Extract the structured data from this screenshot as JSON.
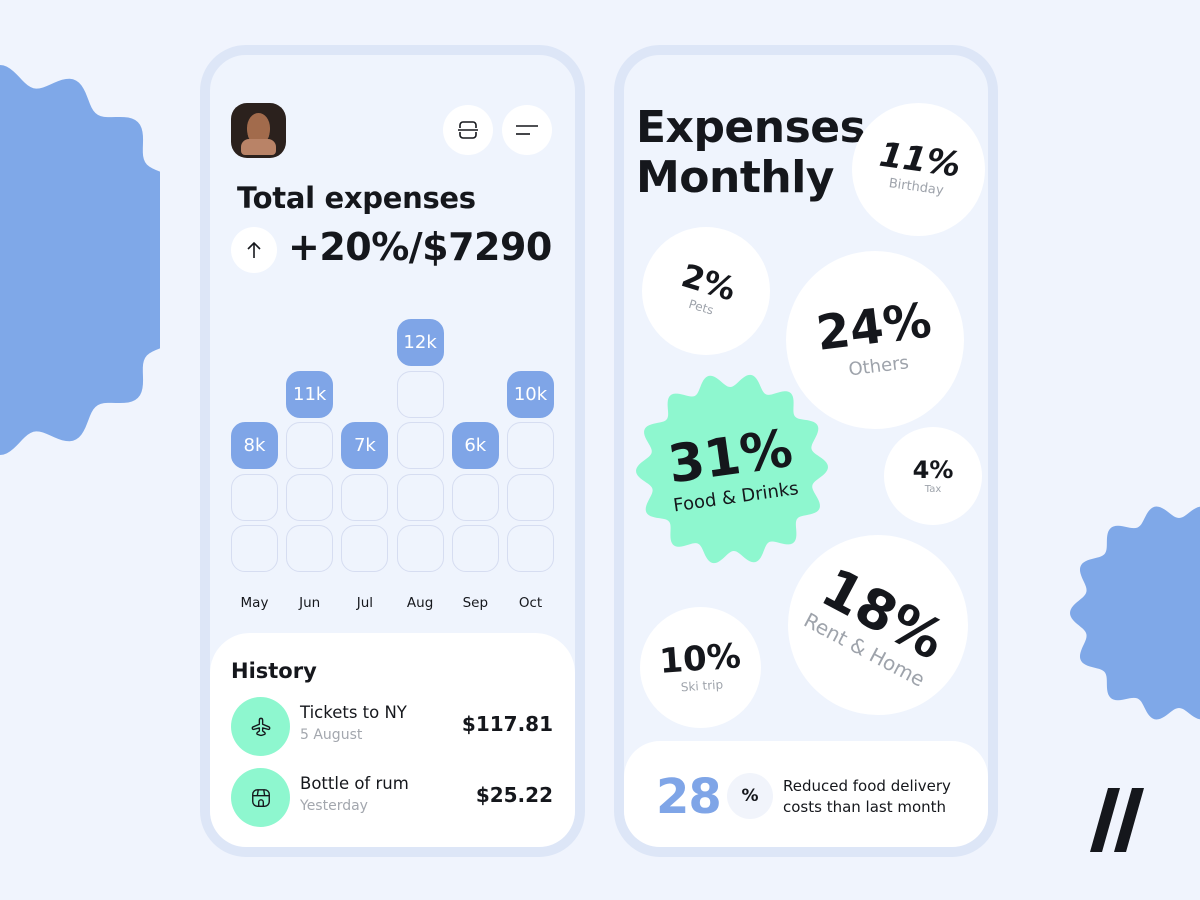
{
  "colors": {
    "background": "#f0f4fd",
    "frame": "#dde6f7",
    "screen": "#eff4fd",
    "accent_blue": "#7fa5e7",
    "accent_mint": "#8ef7cf",
    "text": "#15171c",
    "muted": "#9ea3ab"
  },
  "left_screen": {
    "header": {
      "avatar_icon": "user-avatar",
      "scan_button_icon": "scan-icon",
      "menu_button_icon": "menu-icon"
    },
    "total": {
      "title": "Total expenses",
      "trend_icon": "arrow-up-icon",
      "value": "+20%/$7290"
    },
    "chart": {
      "bars": [
        {
          "month": "May",
          "label": "8k",
          "level": 3
        },
        {
          "month": "Jun",
          "label": "11k",
          "level": 4
        },
        {
          "month": "Jul",
          "label": "7k",
          "level": 3
        },
        {
          "month": "Aug",
          "label": "12k",
          "level": 5
        },
        {
          "month": "Sep",
          "label": "6k",
          "level": 3
        },
        {
          "month": "Oct",
          "label": "10k",
          "level": 4
        }
      ]
    },
    "history": {
      "title": "History",
      "items": [
        {
          "icon": "airplane-icon",
          "name": "Tickets to NY",
          "date": "5 August",
          "amount": "$117.81"
        },
        {
          "icon": "store-icon",
          "name": "Bottle of rum",
          "date": "Yesterday",
          "amount": "$25.22"
        }
      ]
    }
  },
  "right_screen": {
    "title_line1": "Expenses",
    "title_line2": "Monthly",
    "categories": [
      {
        "key": "birthday",
        "percent": "11%",
        "label": "Birthday"
      },
      {
        "key": "pets",
        "percent": "2%",
        "label": "Pets"
      },
      {
        "key": "others",
        "percent": "24%",
        "label": "Others"
      },
      {
        "key": "food",
        "percent": "31%",
        "label": "Food & Drinks"
      },
      {
        "key": "tax",
        "percent": "4%",
        "label": "Tax"
      },
      {
        "key": "rent",
        "percent": "18%",
        "label": "Rent & Home"
      },
      {
        "key": "ski",
        "percent": "10%",
        "label": "Ski trip"
      }
    ],
    "summary": {
      "number": "28",
      "unit": "%",
      "text": "Reduced food delivery costs than last month"
    }
  },
  "chart_data": [
    {
      "type": "bar",
      "title": "Total expenses",
      "categories": [
        "May",
        "Jun",
        "Jul",
        "Aug",
        "Sep",
        "Oct"
      ],
      "values": [
        8000,
        11000,
        7000,
        12000,
        6000,
        10000
      ],
      "value_labels": [
        "8k",
        "11k",
        "7k",
        "12k",
        "6k",
        "10k"
      ],
      "xlabel": "",
      "ylabel": "",
      "grid": true
    },
    {
      "type": "pie",
      "title": "Expenses Monthly",
      "categories": [
        "Birthday",
        "Pets",
        "Others",
        "Food & Drinks",
        "Tax",
        "Rent & Home",
        "Ski trip"
      ],
      "values": [
        11,
        2,
        24,
        31,
        4,
        18,
        10
      ]
    }
  ]
}
